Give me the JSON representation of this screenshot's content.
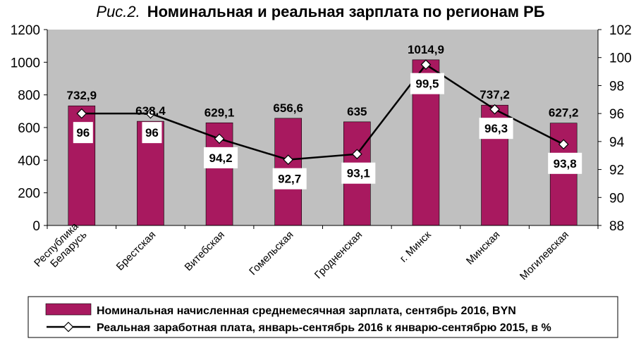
{
  "title": {
    "figure_label": "Рис.2.",
    "text": "Номинальная и реальная зарплата по регионам РБ"
  },
  "colors": {
    "plot_bg": "#c0c0c0",
    "bar": "#a8195f",
    "line": "#000000",
    "marker_fill": "#ffffff"
  },
  "chart_data": {
    "type": "bar",
    "categories": [
      "Республика Беларусь",
      "Брестская",
      "Витебская",
      "Гомельская",
      "Гродненская",
      "г. Минск",
      "Минская",
      "Могилевская"
    ],
    "category_label_lines": [
      [
        "Республика",
        "Беларусь"
      ],
      [
        "Брестская"
      ],
      [
        "Витебская"
      ],
      [
        "Гомельская"
      ],
      [
        "Гродненская"
      ],
      [
        "г. Минск"
      ],
      [
        "Минская"
      ],
      [
        "Могилевская"
      ]
    ],
    "series": [
      {
        "name": "Номинальная начисленная среднемесячная зарплата,  сентябрь 2016, BYN",
        "type": "bar",
        "axis": "left",
        "values": [
          732.9,
          638.4,
          629.1,
          656.6,
          635,
          1014.9,
          737.2,
          627.2
        ],
        "labels": [
          "732,9",
          "638,4",
          "629,1",
          "656,6",
          "635",
          "1014,9",
          "737,2",
          "627,2"
        ]
      },
      {
        "name": "Реальная заработная плата, январь-сентябрь 2016 к январю-сентябрю 2015, в %",
        "type": "line",
        "axis": "right",
        "values": [
          96,
          96,
          94.2,
          92.7,
          93.1,
          99.5,
          96.3,
          93.8
        ],
        "labels": [
          "96",
          "96",
          "94,2",
          "92,7",
          "93,1",
          "99,5",
          "96,3",
          "93,8"
        ]
      }
    ],
    "y_left": {
      "min": 0,
      "max": 1200,
      "ticks": [
        0,
        200,
        400,
        600,
        800,
        1000,
        1200
      ]
    },
    "y_right": {
      "min": 88,
      "max": 102,
      "ticks": [
        88,
        90,
        92,
        94,
        96,
        98,
        100,
        102
      ]
    },
    "grid": false,
    "legend_position": "bottom"
  }
}
